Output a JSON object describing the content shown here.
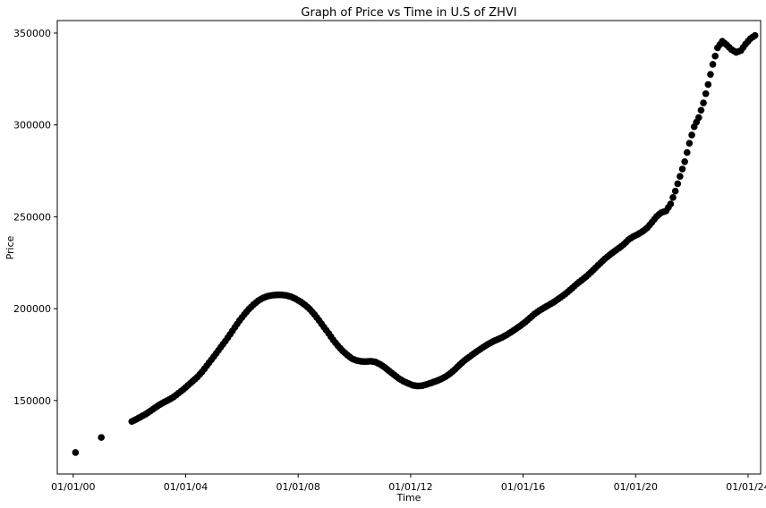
{
  "chart_data": {
    "type": "scatter",
    "title": "Graph of Price vs Time in U.S of ZHVI",
    "xlabel": "Time",
    "ylabel": "Price",
    "x_ticks": [
      {
        "label": "01/01/00",
        "value": "2000-01-01"
      },
      {
        "label": "01/01/04",
        "value": "2004-01-01"
      },
      {
        "label": "01/01/08",
        "value": "2008-01-01"
      },
      {
        "label": "01/01/12",
        "value": "2012-01-01"
      },
      {
        "label": "01/01/16",
        "value": "2016-01-01"
      },
      {
        "label": "01/01/20",
        "value": "2020-01-01"
      },
      {
        "label": "01/01/24",
        "value": "2024-01-01"
      }
    ],
    "y_ticks": [
      {
        "label": "150000",
        "value": 150000
      },
      {
        "label": "200000",
        "value": 200000
      },
      {
        "label": "250000",
        "value": 250000
      },
      {
        "label": "300000",
        "value": 300000
      },
      {
        "label": "350000",
        "value": 350000
      }
    ],
    "xlim": [
      "1999-06-08",
      "2024-06-12"
    ],
    "ylim": [
      110000,
      356800
    ],
    "grid": false,
    "marker_color": "#000000",
    "series": [
      {
        "points": [
          [
            "2000-01-31",
            121700
          ],
          [
            "2000-12-31",
            129900
          ],
          [
            "2002-01-31",
            138600
          ],
          [
            "2002-03-31",
            139800
          ],
          [
            "2002-05-31",
            141200
          ],
          [
            "2002-07-31",
            142600
          ],
          [
            "2002-09-30",
            144300
          ],
          [
            "2002-11-30",
            146100
          ],
          [
            "2003-01-31",
            147800
          ],
          [
            "2003-03-31",
            149200
          ],
          [
            "2003-05-31",
            150500
          ],
          [
            "2003-07-31",
            152000
          ],
          [
            "2003-09-30",
            154000
          ],
          [
            "2003-11-30",
            156000
          ],
          [
            "2004-01-31",
            158300
          ],
          [
            "2004-03-31",
            160500
          ],
          [
            "2004-05-31",
            162800
          ],
          [
            "2004-07-31",
            165600
          ],
          [
            "2004-09-30",
            168900
          ],
          [
            "2004-11-30",
            172200
          ],
          [
            "2005-01-31",
            175600
          ],
          [
            "2005-03-31",
            179000
          ],
          [
            "2005-05-31",
            182400
          ],
          [
            "2005-07-31",
            186000
          ],
          [
            "2005-09-30",
            189800
          ],
          [
            "2005-11-30",
            193500
          ],
          [
            "2006-01-31",
            196800
          ],
          [
            "2006-03-31",
            199700
          ],
          [
            "2006-05-31",
            202200
          ],
          [
            "2006-07-31",
            204300
          ],
          [
            "2006-09-30",
            205800
          ],
          [
            "2006-11-30",
            206800
          ],
          [
            "2007-01-31",
            207300
          ],
          [
            "2007-03-31",
            207500
          ],
          [
            "2007-05-31",
            207500
          ],
          [
            "2007-07-31",
            207200
          ],
          [
            "2007-09-30",
            206500
          ],
          [
            "2007-11-30",
            205300
          ],
          [
            "2008-01-31",
            203800
          ],
          [
            "2008-03-31",
            202000
          ],
          [
            "2008-05-31",
            199700
          ],
          [
            "2008-07-31",
            196800
          ],
          [
            "2008-09-30",
            193500
          ],
          [
            "2008-11-30",
            190000
          ],
          [
            "2009-01-31",
            186500
          ],
          [
            "2009-03-31",
            183000
          ],
          [
            "2009-05-31",
            179800
          ],
          [
            "2009-07-31",
            177000
          ],
          [
            "2009-09-30",
            174800
          ],
          [
            "2009-11-30",
            172800
          ],
          [
            "2010-01-31",
            171800
          ],
          [
            "2010-03-31",
            171300
          ],
          [
            "2010-05-31",
            171200
          ],
          [
            "2010-07-31",
            171400
          ],
          [
            "2010-09-30",
            171000
          ],
          [
            "2010-11-30",
            169700
          ],
          [
            "2011-01-31",
            168000
          ],
          [
            "2011-03-31",
            166000
          ],
          [
            "2011-05-31",
            164000
          ],
          [
            "2011-07-31",
            162000
          ],
          [
            "2011-09-30",
            160500
          ],
          [
            "2011-11-30",
            159300
          ],
          [
            "2012-01-31",
            158300
          ],
          [
            "2012-03-31",
            157900
          ],
          [
            "2012-05-31",
            158100
          ],
          [
            "2012-07-31",
            158800
          ],
          [
            "2012-09-30",
            159700
          ],
          [
            "2012-11-30",
            160600
          ],
          [
            "2013-01-31",
            161700
          ],
          [
            "2013-03-31",
            163000
          ],
          [
            "2013-05-31",
            164800
          ],
          [
            "2013-07-31",
            167000
          ],
          [
            "2013-09-30",
            169500
          ],
          [
            "2013-11-30",
            171800
          ],
          [
            "2014-01-31",
            173700
          ],
          [
            "2014-03-31",
            175500
          ],
          [
            "2014-05-31",
            177300
          ],
          [
            "2014-07-31",
            179000
          ],
          [
            "2014-09-30",
            180600
          ],
          [
            "2014-11-30",
            182000
          ],
          [
            "2015-01-31",
            183200
          ],
          [
            "2015-03-31",
            184300
          ],
          [
            "2015-05-31",
            185700
          ],
          [
            "2015-07-31",
            187300
          ],
          [
            "2015-09-30",
            189000
          ],
          [
            "2015-11-30",
            190800
          ],
          [
            "2016-01-31",
            192800
          ],
          [
            "2016-03-31",
            195000
          ],
          [
            "2016-05-31",
            197200
          ],
          [
            "2016-07-31",
            199000
          ],
          [
            "2016-09-30",
            200500
          ],
          [
            "2016-11-30",
            202000
          ],
          [
            "2017-01-31",
            203500
          ],
          [
            "2017-03-31",
            205200
          ],
          [
            "2017-05-31",
            207000
          ],
          [
            "2017-07-31",
            209000
          ],
          [
            "2017-09-30",
            211200
          ],
          [
            "2017-11-30",
            213500
          ],
          [
            "2018-01-31",
            215500
          ],
          [
            "2018-03-31",
            217500
          ],
          [
            "2018-05-31",
            219800
          ],
          [
            "2018-07-31",
            222300
          ],
          [
            "2018-09-30",
            224800
          ],
          [
            "2018-11-30",
            227200
          ],
          [
            "2019-01-31",
            229300
          ],
          [
            "2019-03-31",
            231200
          ],
          [
            "2019-05-31",
            233000
          ],
          [
            "2019-07-31",
            235000
          ],
          [
            "2019-09-30",
            237500
          ],
          [
            "2019-11-30",
            239200
          ],
          [
            "2020-01-31",
            240500
          ],
          [
            "2020-03-31",
            242000
          ],
          [
            "2020-05-31",
            244000
          ],
          [
            "2020-07-31",
            247000
          ],
          [
            "2020-09-30",
            250200
          ],
          [
            "2020-11-30",
            252300
          ],
          [
            "2021-01-31",
            253200
          ],
          [
            "2021-03-31",
            257000
          ],
          [
            "2021-05-31",
            264000
          ],
          [
            "2021-07-31",
            272000
          ],
          [
            "2021-09-30",
            280000
          ],
          [
            "2021-11-30",
            290000
          ],
          [
            "2022-01-31",
            299000
          ],
          [
            "2022-03-31",
            304000
          ],
          [
            "2022-05-31",
            312000
          ],
          [
            "2022-07-31",
            322000
          ],
          [
            "2022-09-30",
            333000
          ],
          [
            "2022-11-30",
            342000
          ],
          [
            "2023-01-31",
            345500
          ],
          [
            "2023-03-31",
            343500
          ],
          [
            "2023-05-31",
            341000
          ],
          [
            "2023-07-31",
            339500
          ],
          [
            "2023-09-30",
            340500
          ],
          [
            "2023-11-30",
            344000
          ],
          [
            "2024-01-31",
            347000
          ],
          [
            "2024-03-31",
            348700
          ]
        ]
      }
    ]
  }
}
